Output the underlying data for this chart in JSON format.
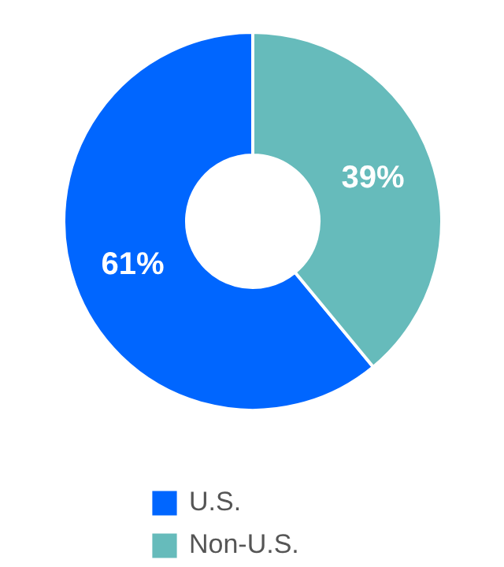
{
  "chart_data": {
    "type": "donut",
    "categories": [
      "U.S.",
      "Non-U.S."
    ],
    "values": [
      61,
      39
    ],
    "colors": [
      "#0066ff",
      "#66bbbb"
    ],
    "value_labels": [
      "61%",
      "39%"
    ],
    "legend": "bottom"
  }
}
